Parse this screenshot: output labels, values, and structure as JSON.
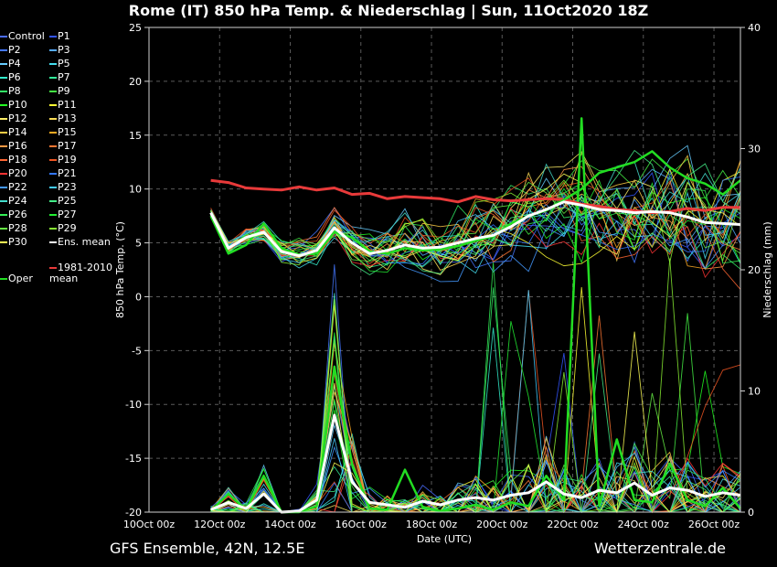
{
  "header": {
    "title": "Rome  (IT)  850 hPa Temp. & Niederschlag | Sun, 11Oct2020 18Z"
  },
  "footer": {
    "model": "GFS Ensemble, 42N, 12.5E",
    "site": "Wetterzentrale.de"
  },
  "colors": {
    "background": "#000000",
    "grid": "#5a5a5a",
    "ens_mean": "#ffffff",
    "oper": "#22dd22",
    "climate_mean": "#e83a3a"
  },
  "legend": [
    {
      "label": "Control",
      "color": "#4a6cff"
    },
    {
      "label": "P1",
      "color": "#3355ff"
    },
    {
      "label": "P2",
      "color": "#4477ff"
    },
    {
      "label": "P3",
      "color": "#55aaff"
    },
    {
      "label": "P4",
      "color": "#66ccff"
    },
    {
      "label": "P5",
      "color": "#44ddee"
    },
    {
      "label": "P6",
      "color": "#33eecc"
    },
    {
      "label": "P7",
      "color": "#33ee99"
    },
    {
      "label": "P8",
      "color": "#33ee66"
    },
    {
      "label": "P9",
      "color": "#44ee44"
    },
    {
      "label": "P10",
      "color": "#22ff22"
    },
    {
      "label": "P11",
      "color": "#ffff33"
    },
    {
      "label": "P12",
      "color": "#ffee66"
    },
    {
      "label": "P13",
      "color": "#ffdd55"
    },
    {
      "label": "P14",
      "color": "#ffcc44"
    },
    {
      "label": "P15",
      "color": "#ffaa22"
    },
    {
      "label": "P16",
      "color": "#ff9944"
    },
    {
      "label": "P17",
      "color": "#ff7733"
    },
    {
      "label": "P18",
      "color": "#ff6633"
    },
    {
      "label": "P19",
      "color": "#ee5522"
    },
    {
      "label": "P20",
      "color": "#ff3333"
    },
    {
      "label": "P21",
      "color": "#3377ff"
    },
    {
      "label": "P22",
      "color": "#4499ff"
    },
    {
      "label": "P23",
      "color": "#44ccff"
    },
    {
      "label": "P24",
      "color": "#44ddcc"
    },
    {
      "label": "P25",
      "color": "#44ee88"
    },
    {
      "label": "P26",
      "color": "#33ee55"
    },
    {
      "label": "P27",
      "color": "#22ee33"
    },
    {
      "label": "P28",
      "color": "#66ee44"
    },
    {
      "label": "P29",
      "color": "#88ee33"
    },
    {
      "label": "P30",
      "color": "#ffff55"
    },
    {
      "label": "Ens. mean",
      "color": "#ffffff"
    },
    {
      "label": "Oper",
      "color": "#22dd22"
    },
    {
      "label": "1981-2010 mean",
      "color": "#e83a3a"
    }
  ],
  "chart_data": {
    "type": "line",
    "title": "Rome  (IT)  850 hPa Temp. & Niederschlag | Sun, 11Oct2020 18Z",
    "xlabel": "Date (UTC)",
    "ylabel_left": "850 hPa Temp. (°C)",
    "ylabel_right": "Niederschlag (mm)",
    "xlim_days": [
      10.0,
      26.75
    ],
    "ylim_left": [
      -20,
      25
    ],
    "ylim_right": [
      0,
      40
    ],
    "grid": true,
    "legend_position": "left",
    "x_ticks": [
      "10Oct 00z",
      "12Oct 00z",
      "14Oct 00z",
      "16Oct 00z",
      "18Oct 00z",
      "20Oct 00z",
      "22Oct 00z",
      "24Oct 00z",
      "26Oct 00z"
    ],
    "y_ticks_left": [
      "25",
      "20",
      "15",
      "10",
      "5",
      "0",
      "-5",
      "-10",
      "-15",
      "-20"
    ],
    "y_ticks_right": [
      "40",
      "30",
      "20",
      "10",
      "0"
    ],
    "series": [
      {
        "name": "Ens. mean",
        "axis": "left",
        "x": [
          "11Oct 18z",
          "12Oct 06z",
          "12Oct 18z",
          "13Oct 06z",
          "13Oct 18z",
          "14Oct 06z",
          "14Oct 18z",
          "15Oct 06z",
          "15Oct 18z",
          "16Oct 06z",
          "16Oct 18z",
          "17Oct 06z",
          "17Oct 18z",
          "18Oct 06z",
          "18Oct 18z",
          "19Oct 06z",
          "19Oct 18z",
          "20Oct 06z",
          "20Oct 18z",
          "21Oct 06z",
          "21Oct 18z",
          "22Oct 06z",
          "22Oct 18z",
          "23Oct 06z",
          "23Oct 18z",
          "24Oct 06z",
          "24Oct 18z",
          "25Oct 06z",
          "25Oct 18z",
          "26Oct 06z",
          "26Oct 18z"
        ],
        "values": [
          7.8,
          4.5,
          5.5,
          6.0,
          4.2,
          3.8,
          4.3,
          6.4,
          5.0,
          4.0,
          4.3,
          4.8,
          4.5,
          4.6,
          5.0,
          5.4,
          5.7,
          6.5,
          7.5,
          8.1,
          8.8,
          8.5,
          8.1,
          8.0,
          7.8,
          7.9,
          7.8,
          7.4,
          6.9,
          6.8,
          6.7
        ]
      },
      {
        "name": "Oper",
        "axis": "left",
        "x": [
          "11Oct 18z",
          "12Oct 06z",
          "12Oct 18z",
          "13Oct 06z",
          "13Oct 18z",
          "14Oct 06z",
          "14Oct 18z",
          "15Oct 06z",
          "15Oct 18z",
          "16Oct 06z",
          "16Oct 18z",
          "17Oct 06z",
          "17Oct 18z",
          "18Oct 06z",
          "18Oct 18z",
          "19Oct 06z",
          "19Oct 18z",
          "20Oct 06z",
          "20Oct 18z",
          "21Oct 06z",
          "21Oct 18z",
          "22Oct 06z",
          "22Oct 18z",
          "23Oct 06z",
          "23Oct 18z",
          "24Oct 06z",
          "24Oct 18z",
          "25Oct 06z",
          "25Oct 18z",
          "26Oct 06z",
          "26Oct 18z"
        ],
        "values": [
          7.5,
          4.0,
          4.8,
          6.8,
          4.5,
          3.9,
          4.0,
          6.0,
          5.5,
          4.2,
          4.0,
          4.5,
          4.3,
          4.4,
          4.7,
          5.2,
          5.6,
          6.8,
          7.5,
          8.0,
          9.0,
          10.0,
          11.5,
          12.0,
          12.5,
          13.5,
          12.0,
          11.0,
          10.5,
          9.5,
          10.8
        ]
      },
      {
        "name": "1981-2010 mean",
        "axis": "left",
        "x": [
          "11Oct 18z",
          "12Oct 06z",
          "12Oct 18z",
          "13Oct 06z",
          "13Oct 18z",
          "14Oct 06z",
          "14Oct 18z",
          "15Oct 06z",
          "15Oct 18z",
          "16Oct 06z",
          "16Oct 18z",
          "17Oct 06z",
          "17Oct 18z",
          "18Oct 06z",
          "18Oct 18z",
          "19Oct 06z",
          "19Oct 18z",
          "20Oct 06z",
          "20Oct 18z",
          "21Oct 06z",
          "21Oct 18z",
          "22Oct 06z",
          "22Oct 18z",
          "23Oct 06z",
          "23Oct 18z",
          "24Oct 06z",
          "24Oct 18z",
          "25Oct 06z",
          "25Oct 18z",
          "26Oct 06z",
          "26Oct 18z"
        ],
        "values": [
          10.8,
          10.6,
          10.1,
          10.0,
          9.9,
          10.2,
          9.9,
          10.1,
          9.5,
          9.6,
          9.1,
          9.3,
          9.2,
          9.1,
          8.8,
          9.3,
          9.0,
          8.9,
          9.0,
          9.1,
          9.0,
          8.6,
          8.4,
          8.1,
          8.0,
          7.8,
          7.9,
          8.2,
          8.0,
          8.3,
          8.3
        ]
      },
      {
        "name": "Ens. mean",
        "axis": "right",
        "kind": "precipitation",
        "x": [
          "11Oct 18z",
          "12Oct 06z",
          "12Oct 18z",
          "13Oct 06z",
          "13Oct 18z",
          "14Oct 06z",
          "14Oct 18z",
          "15Oct 06z",
          "15Oct 18z",
          "16Oct 06z",
          "16Oct 18z",
          "17Oct 06z",
          "17Oct 18z",
          "18Oct 06z",
          "18Oct 18z",
          "19Oct 06z",
          "19Oct 18z",
          "20Oct 06z",
          "20Oct 18z",
          "21Oct 06z",
          "21Oct 18z",
          "22Oct 06z",
          "22Oct 18z",
          "23Oct 06z",
          "23Oct 18z",
          "24Oct 06z",
          "24Oct 18z",
          "25Oct 06z",
          "25Oct 18z",
          "26Oct 06z",
          "26Oct 18z"
        ],
        "values": [
          0.2,
          0.8,
          0.3,
          1.5,
          0.0,
          0.1,
          1.0,
          8.0,
          2.5,
          0.8,
          0.6,
          0.4,
          0.9,
          0.6,
          1.0,
          1.2,
          1.0,
          1.4,
          1.6,
          2.5,
          1.5,
          1.2,
          1.8,
          1.6,
          2.4,
          1.4,
          2.0,
          1.8,
          1.3,
          1.6,
          1.4
        ]
      },
      {
        "name": "Oper",
        "axis": "right",
        "kind": "precipitation",
        "x": [
          "11Oct 18z",
          "12Oct 06z",
          "12Oct 18z",
          "13Oct 06z",
          "13Oct 18z",
          "14Oct 06z",
          "14Oct 18z",
          "15Oct 06z",
          "15Oct 18z",
          "16Oct 06z",
          "16Oct 18z",
          "17Oct 06z",
          "17Oct 18z",
          "18Oct 06z",
          "18Oct 18z",
          "19Oct 06z",
          "19Oct 18z",
          "20Oct 06z",
          "20Oct 18z",
          "21Oct 06z",
          "21Oct 18z",
          "22Oct 06z",
          "22Oct 18z",
          "23Oct 06z",
          "23Oct 18z",
          "24Oct 06z",
          "24Oct 18z",
          "25Oct 06z",
          "25Oct 18z",
          "26Oct 06z",
          "26Oct 18z"
        ],
        "values": [
          0.1,
          1.5,
          0.2,
          3.0,
          0.0,
          0.0,
          0.5,
          12.0,
          4.0,
          0.3,
          0.2,
          3.5,
          0.4,
          0.1,
          0.3,
          0.6,
          0.2,
          0.8,
          0.5,
          3.0,
          1.0,
          32.5,
          0.5,
          6.0,
          1.0,
          0.8,
          4.0,
          1.0,
          0.5,
          2.0,
          0.3
        ]
      }
    ]
  }
}
